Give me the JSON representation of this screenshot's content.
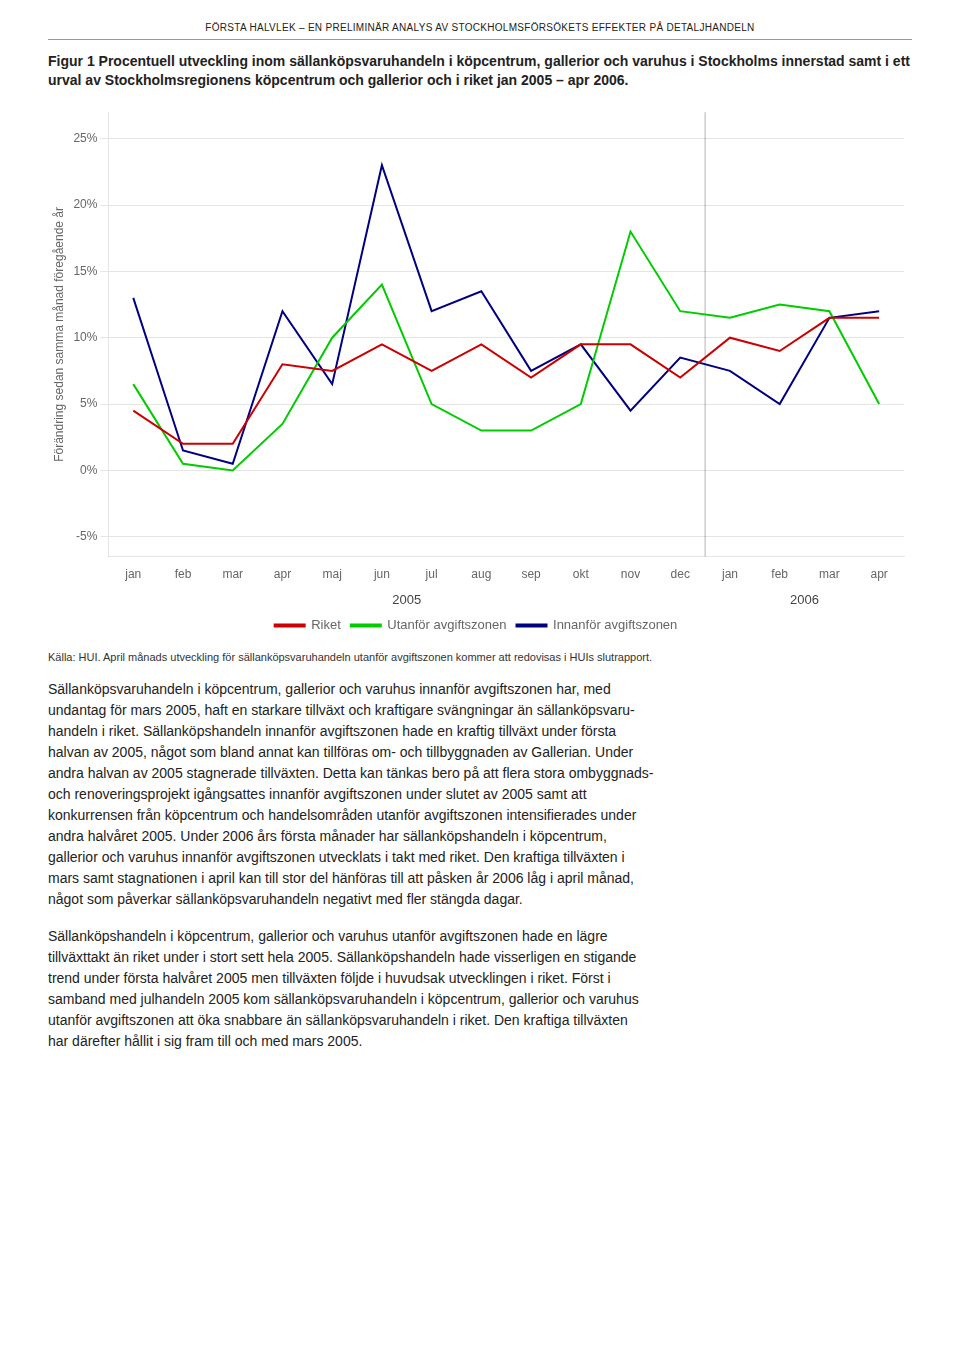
{
  "chart_data": {
    "type": "line",
    "subtitle": "FÖRSTA HALVLEK – EN PRELIMINÄR ANALYS AV STOCKHOLMSFÖRSÖKETS EFFEKTER PÅ DETALJHANDELN",
    "title": "Figur 1 Procentuell utveckling inom sällanköpsvaruhandeln i köpcentrum, gallerior och varuhus i Stockholms innerstad samt i ett urval av Stockholmsregionens köpcentrum och gallerior och i riket jan 2005 – apr 2006.",
    "y_label": "Förändring sedan samma månad föregående år",
    "categories": [
      "jan",
      "feb",
      "mar",
      "apr",
      "maj",
      "jun",
      "jul",
      "aug",
      "sep",
      "okt",
      "nov",
      "dec",
      "jan",
      "feb",
      "mar",
      "apr"
    ],
    "series": [
      {
        "name": "Riket",
        "color": "#cc0000",
        "values": [
          4.5,
          2.0,
          2.0,
          8.0,
          7.5,
          9.5,
          7.5,
          9.5,
          7.0,
          9.5,
          9.5,
          7.0,
          10.0,
          9.0,
          11.5,
          11.5
        ]
      },
      {
        "name": "Utanför avgiftszonen",
        "color": "#00cc00",
        "values": [
          6.5,
          0.5,
          0.0,
          3.5,
          10.0,
          14.0,
          5.0,
          3.0,
          3.0,
          5.0,
          18.0,
          12.0,
          11.5,
          12.5,
          12.0,
          5.0
        ]
      },
      {
        "name": "Innanför avgiftszonen",
        "color": "#000080",
        "values": [
          13.0,
          1.5,
          0.5,
          12.0,
          6.5,
          23.0,
          12.0,
          13.5,
          7.5,
          9.5,
          4.5,
          8.5,
          7.5,
          5.0,
          11.5,
          12.0
        ]
      }
    ],
    "ylim": [
      -6.5,
      27
    ],
    "yticks": [
      {
        "value": -5,
        "label": "-5%"
      },
      {
        "value": 0,
        "label": "0%"
      },
      {
        "value": 5,
        "label": "5%"
      },
      {
        "value": 10,
        "label": "10%"
      },
      {
        "value": 15,
        "label": "15%"
      },
      {
        "value": 20,
        "label": "20%"
      },
      {
        "value": 25,
        "label": "25%"
      }
    ],
    "grid": true,
    "legend": "bottom",
    "annotations": [
      "Källa: HUI. April månads utveckling för sällanköpsvaruhandeln utanför avgiftszonen kommer att redovisas i HUIs slutrapport.",
      "Sällanköpsvaruhandeln i köpcentrum, gallerior och varuhus innanför avgiftszonen har, med\nundantag för mars 2005, haft en starkare tillväxt och kraftigare svängningar än sällanköpsvaru-\nhandeln i riket. Sällanköpshandeln innanför avgiftszonen hade en kraftig tillväxt under första\nhalvan av 2005, något som bland annat kan tillföras om- och tillbyggnaden av Gallerian. Under\nandra halvan av 2005 stagnerade tillväxten. Detta kan tänkas bero på att flera stora ombyggnads-\noch renoveringsprojekt igångsattes innanför avgiftszonen under slutet av 2005 samt att\nkonkurrensen från köpcentrum och handelsområden utanför avgiftszonen intensifierades under\nandra halvåret 2005. Under 2006 års första månader har sällanköpshandeln i köpcentrum,\ngallerior och varuhus innanför avgiftszonen utvecklats i takt med riket. Den kraftiga tillväxten i\nmars samt stagnationen i april kan till stor del hänföras till att påsken år 2006 låg i april månad,\nnågot som påverkar sällanköpsvaruhandeln negativt med fler stängda dagar.",
      "Sällanköpshandeln i köpcentrum, gallerior och varuhus utanför avgiftszonen hade en lägre\ntillväxttakt än riket under i stort sett hela 2005. Sällanköpshandeln hade visserligen en stigande\ntrend under första halvåret 2005 men tillväxten följde i huvudsak utvecklingen i riket. Först i\nsamband med julhandeln 2005 kom sällanköpsvaruhandeln i köpcentrum, gallerior och varuhus\nutanför avgiftszonen att öka snabbare än sällanköpsvaruhandeln i riket. Den kraftiga tillväxten\nhar därefter hållit i sig fram till och med mars 2005.",
      "2005",
      "2006"
    ]
  }
}
